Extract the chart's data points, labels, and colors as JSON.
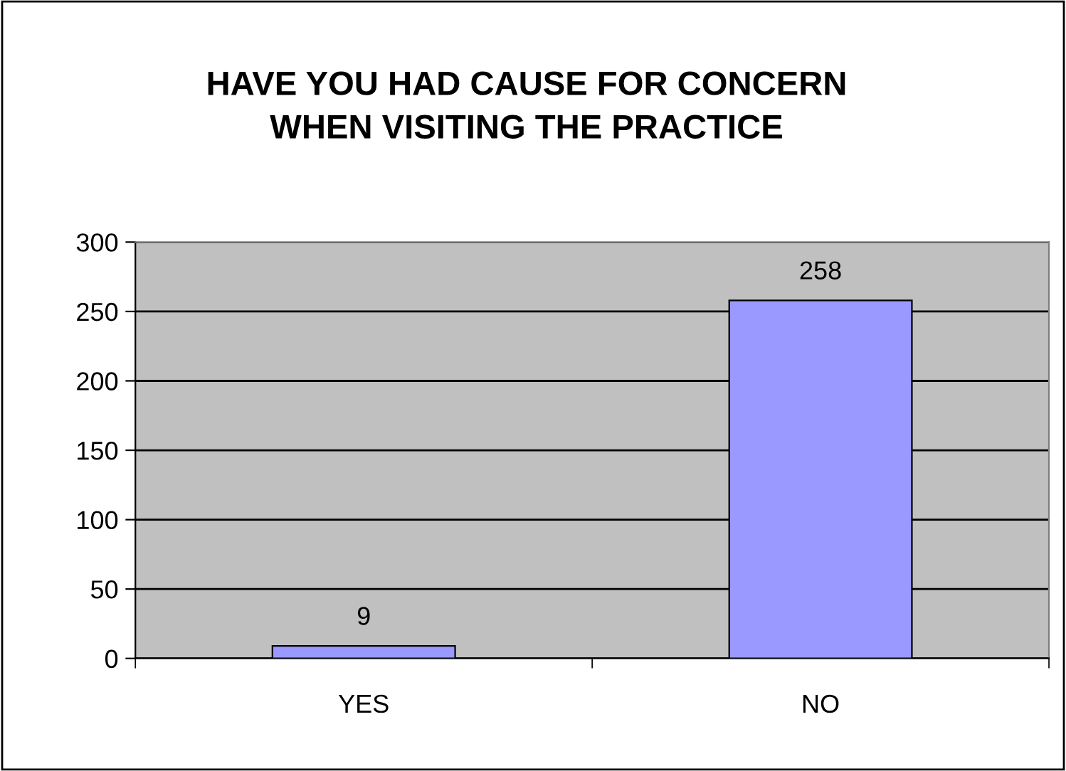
{
  "chart_data": {
    "type": "bar",
    "title": "HAVE YOU HAD CAUSE FOR CONCERN\nWHEN VISITING THE PRACTICE",
    "categories": [
      "YES",
      "NO"
    ],
    "values": [
      9,
      258
    ],
    "color": "#9999ff",
    "ylim": [
      0,
      300
    ],
    "yticks": [
      0,
      50,
      100,
      150,
      200,
      250,
      300
    ],
    "grid": "y",
    "data_labels": true
  }
}
